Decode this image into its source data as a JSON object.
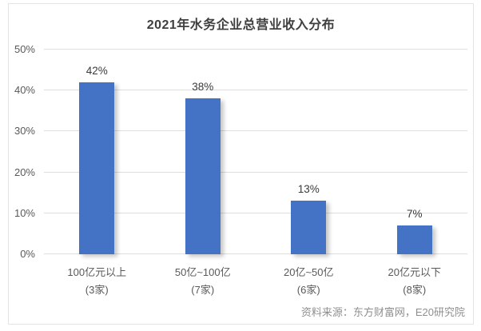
{
  "chart_data": {
    "type": "bar",
    "title": "2021年水务企业总营业收入分布",
    "categories": [
      "100亿元以上",
      "50亿~100亿",
      "20亿~50亿",
      "20亿元以下"
    ],
    "category_counts": [
      "(3家)",
      "(7家)",
      "(6家)",
      "(8家)"
    ],
    "values": [
      42,
      38,
      13,
      7
    ],
    "value_labels": [
      "42%",
      "38%",
      "13%",
      "7%"
    ],
    "xlabel": "",
    "ylabel": "",
    "ylim": [
      0,
      50
    ],
    "ytick_values": [
      0,
      10,
      20,
      30,
      40,
      50
    ],
    "ytick_labels": [
      "0%",
      "10%",
      "20%",
      "30%",
      "40%",
      "50%"
    ],
    "grid": true,
    "legend_position": "none",
    "bar_color": "#4472c4",
    "source": "资料来源：东方财富网，E20研究院"
  }
}
